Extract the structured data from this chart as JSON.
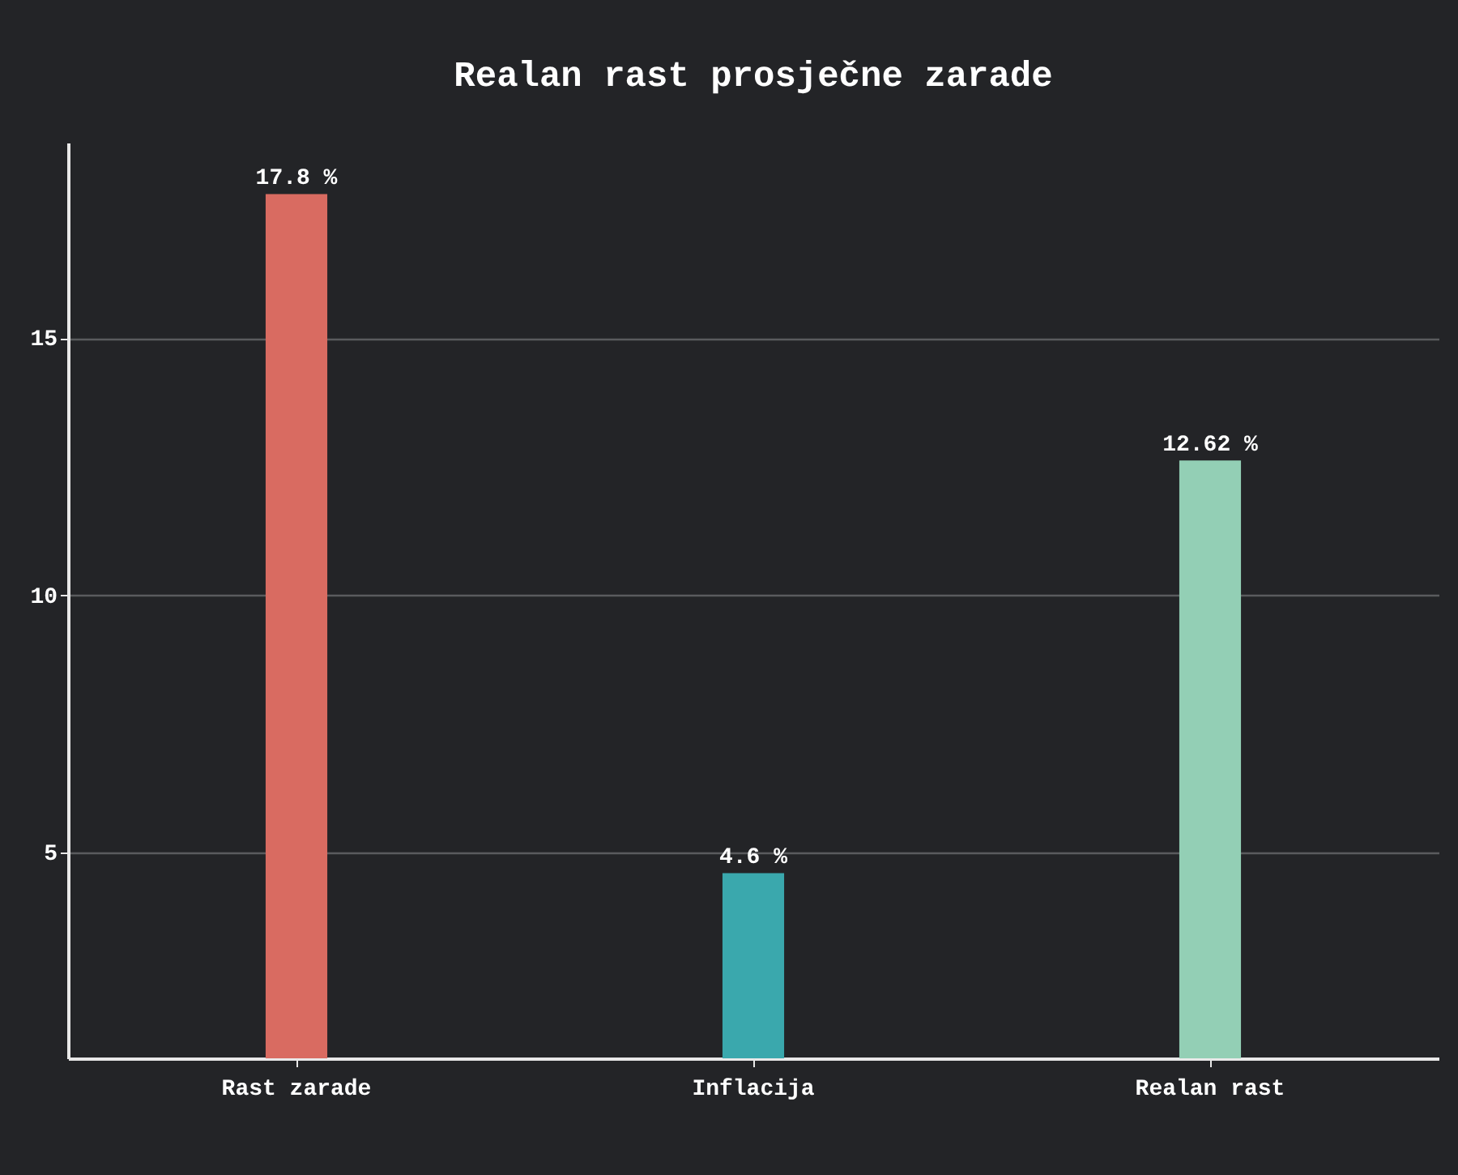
{
  "chart_data": {
    "type": "bar",
    "title": "Realan rast prosječne zarade",
    "categories": [
      "Rast zarade",
      "Inflacija",
      "Realan rast"
    ],
    "values": [
      17.8,
      4.6,
      12.62
    ],
    "colors": [
      "#d96b61",
      "#3aa8ad",
      "#93cfb5"
    ],
    "value_labels": [
      "17.8 %",
      "4.6 %",
      "12.62 %"
    ],
    "ylim": [
      1,
      18.8
    ],
    "yticks": [
      5,
      10,
      15
    ],
    "grid": "y"
  }
}
